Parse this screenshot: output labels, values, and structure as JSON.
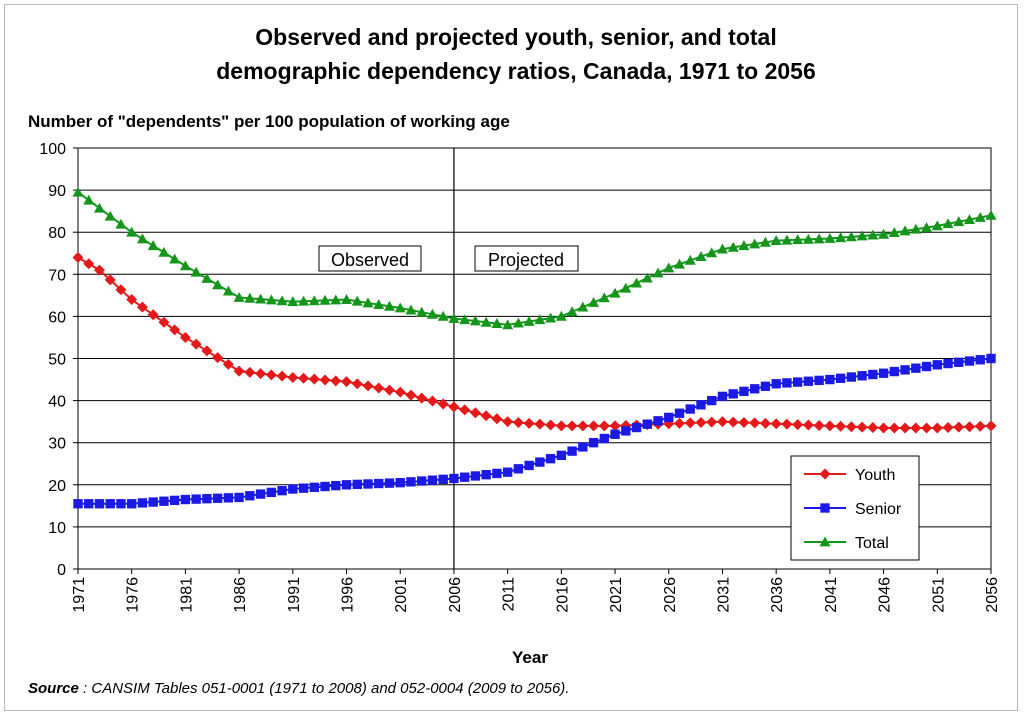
{
  "chart_data": {
    "type": "line",
    "title_line1": "Observed and projected youth, senior, and total",
    "title_line2": "demographic dependency ratios, Canada, 1971 to 2056",
    "ylabel": "Number of \"dependents\" per 100  population of working age",
    "xlabel": "Year",
    "ylim": [
      0,
      100
    ],
    "yticks": [
      0,
      10,
      20,
      30,
      40,
      50,
      60,
      70,
      80,
      90,
      100
    ],
    "xlim": [
      1971,
      2056
    ],
    "xticks": [
      1971,
      1976,
      1981,
      1986,
      1991,
      1996,
      2001,
      2006,
      2011,
      2016,
      2021,
      2026,
      2031,
      2036,
      2041,
      2046,
      2051,
      2056
    ],
    "divider_year": 2006,
    "annotations": {
      "observed": "Observed",
      "projected": "Projected"
    },
    "series": [
      {
        "name": "Youth",
        "color": "#e41a1a",
        "marker": "diamond",
        "x": [
          1971,
          1973,
          1976,
          1981,
          1986,
          1991,
          1996,
          2001,
          2006,
          2011,
          2016,
          2021,
          2026,
          2031,
          2036,
          2041,
          2046,
          2051,
          2056
        ],
        "values": [
          74,
          71,
          64,
          55,
          47,
          45.5,
          44.5,
          42,
          38.5,
          35,
          34,
          34,
          34.5,
          35,
          34.5,
          34,
          33.5,
          33.5,
          34
        ]
      },
      {
        "name": "Senior",
        "color": "#1a1ae4",
        "marker": "square",
        "x": [
          1971,
          1976,
          1981,
          1986,
          1991,
          1996,
          2001,
          2006,
          2011,
          2016,
          2021,
          2026,
          2031,
          2036,
          2041,
          2046,
          2051,
          2056
        ],
        "values": [
          15.5,
          15.5,
          16.5,
          17,
          19,
          20,
          20.5,
          21.5,
          23,
          27,
          32,
          36,
          41,
          44,
          45,
          46.5,
          48.5,
          50
        ]
      },
      {
        "name": "Total",
        "color": "#14961a",
        "marker": "triangle",
        "x": [
          1971,
          1976,
          1981,
          1986,
          1991,
          1996,
          2001,
          2006,
          2011,
          2016,
          2021,
          2026,
          2031,
          2036,
          2041,
          2046,
          2051,
          2056
        ],
        "values": [
          89.5,
          80,
          72,
          64.5,
          63.5,
          64,
          62,
          59.5,
          58,
          60,
          65.5,
          71.5,
          76,
          78,
          78.5,
          79.5,
          81.5,
          84
        ]
      }
    ]
  },
  "source": {
    "label": "Source",
    "text": " : CANSIM Tables 051-0001 (1971 to 2008) and 052-0004 (2009 to 2056)."
  }
}
